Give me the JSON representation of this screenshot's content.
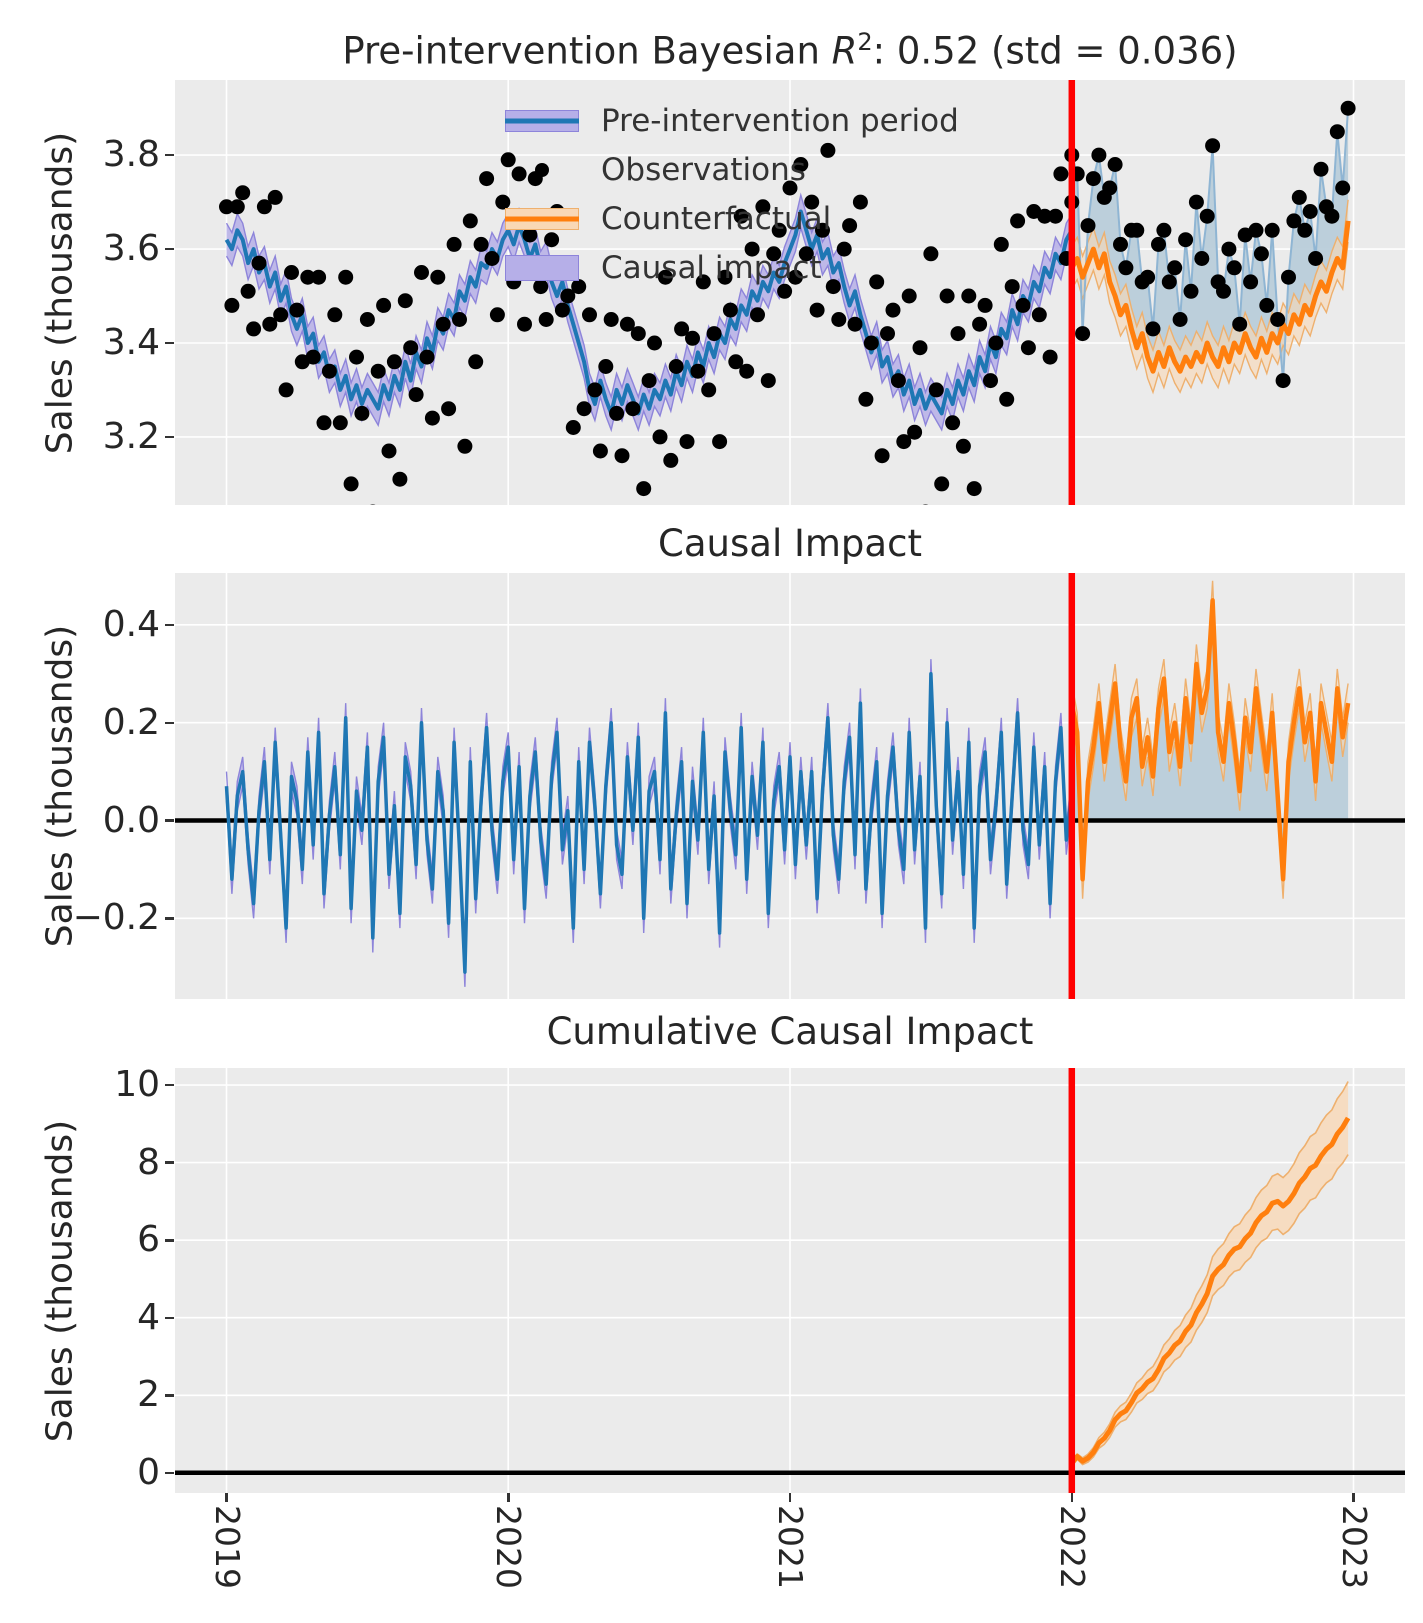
{
  "figure": {
    "background": "#ffffff",
    "panel_background": "#ebebeb",
    "grid_color": "#ffffff",
    "text_color": "#262626",
    "intervention_line_color": "#ff0000",
    "zero_line_color": "#000000"
  },
  "colors": {
    "pre_line": "#1f77b4",
    "pre_band": "#b6afe8",
    "pre_band_edge": "#8d84da",
    "counterfactual_line": "#ff7f0e",
    "counterfactual_band": "#f9d8b6",
    "counterfactual_band_edge": "#eeb06e",
    "causal_impact_fill": "#b9cdda",
    "observation_line": "#8fb5d3",
    "observation_dot": "#000000"
  },
  "xaxis": {
    "tick_labels": [
      "2019",
      "2020",
      "2021",
      "2022",
      "2023"
    ],
    "tick_weeks": [
      0,
      52,
      104,
      156,
      208
    ],
    "xlim_weeks": [
      -9.5,
      217.5
    ],
    "intervention_week": 156,
    "frequency": "weekly"
  },
  "chart_data": [
    {
      "type": "line",
      "title": "Pre-intervention Bayesian R²: 0.52 (std = 0.036)",
      "title_parts": {
        "prefix": "Pre-intervention Bayesian ",
        "stat_symbol": "R",
        "stat_exponent": "2",
        "suffix": ": 0.52 (std = 0.036)"
      },
      "ylabel": "Sales (thousands)",
      "ytick_labels": [
        "3.2",
        "3.4",
        "3.6",
        "3.8"
      ],
      "yticks": [
        3.2,
        3.4,
        3.6,
        3.8
      ],
      "ylim": [
        3.055,
        3.96
      ],
      "legend": [
        {
          "label": "Pre-intervention period",
          "kind": "line_band"
        },
        {
          "label": "Observations",
          "kind": "dot"
        },
        {
          "label": "Counterfactual",
          "kind": "line_band"
        },
        {
          "label": "Causal impact",
          "kind": "patch"
        }
      ],
      "series": {
        "pre_mean": [
          3.62,
          3.6,
          3.64,
          3.62,
          3.57,
          3.6,
          3.55,
          3.57,
          3.52,
          3.55,
          3.49,
          3.52,
          3.46,
          3.43,
          3.46,
          3.4,
          3.42,
          3.36,
          3.38,
          3.33,
          3.35,
          3.3,
          3.33,
          3.28,
          3.31,
          3.27,
          3.3,
          3.28,
          3.26,
          3.31,
          3.28,
          3.33,
          3.3,
          3.36,
          3.32,
          3.38,
          3.35,
          3.41,
          3.38,
          3.44,
          3.42,
          3.47,
          3.45,
          3.51,
          3.49,
          3.54,
          3.52,
          3.57,
          3.56,
          3.6,
          3.58,
          3.62,
          3.64,
          3.61,
          3.65,
          3.62,
          3.58,
          3.61,
          3.56,
          3.58,
          3.53,
          3.5,
          3.53,
          3.48,
          3.44,
          3.4,
          3.36,
          3.3,
          3.27,
          3.32,
          3.28,
          3.25,
          3.3,
          3.27,
          3.31,
          3.28,
          3.25,
          3.29,
          3.26,
          3.3,
          3.28,
          3.32,
          3.29,
          3.34,
          3.31,
          3.36,
          3.33,
          3.38,
          3.35,
          3.4,
          3.37,
          3.42,
          3.4,
          3.45,
          3.43,
          3.48,
          3.46,
          3.51,
          3.49,
          3.53,
          3.51,
          3.55,
          3.53,
          3.57,
          3.6,
          3.63,
          3.68,
          3.64,
          3.6,
          3.63,
          3.58,
          3.6,
          3.55,
          3.57,
          3.52,
          3.48,
          3.51,
          3.46,
          3.42,
          3.38,
          3.41,
          3.35,
          3.37,
          3.32,
          3.34,
          3.29,
          3.32,
          3.27,
          3.3,
          3.26,
          3.29,
          3.27,
          3.25,
          3.3,
          3.27,
          3.32,
          3.29,
          3.34,
          3.31,
          3.37,
          3.34,
          3.4,
          3.37,
          3.43,
          3.41,
          3.47,
          3.44,
          3.5,
          3.48,
          3.53,
          3.51,
          3.56,
          3.54,
          3.59,
          3.57,
          3.62,
          3.64
        ],
        "pre_band_halfwidth": 0.035,
        "counterfactual": [
          3.56,
          3.58,
          3.54,
          3.57,
          3.6,
          3.56,
          3.59,
          3.53,
          3.5,
          3.46,
          3.48,
          3.43,
          3.39,
          3.42,
          3.37,
          3.34,
          3.38,
          3.35,
          3.39,
          3.36,
          3.34,
          3.37,
          3.35,
          3.38,
          3.36,
          3.4,
          3.37,
          3.35,
          3.39,
          3.36,
          3.4,
          3.38,
          3.42,
          3.39,
          3.37,
          3.41,
          3.38,
          3.42,
          3.4,
          3.44,
          3.42,
          3.46,
          3.44,
          3.48,
          3.46,
          3.5,
          3.53,
          3.51,
          3.55,
          3.58,
          3.56,
          3.66
        ],
        "counterfactual_band_halfwidth": 0.045
      }
    },
    {
      "type": "line",
      "title": "Causal Impact",
      "ylabel": "Sales (thousands)",
      "ytick_labels": [
        "−0.2",
        "0.0",
        "0.2",
        "0.4"
      ],
      "yticks": [
        -0.2,
        0.0,
        0.2,
        0.4
      ],
      "ylim": [
        -0.365,
        0.506
      ],
      "series": {
        "impact_pre": [
          0.07,
          -0.12,
          0.05,
          0.1,
          -0.06,
          -0.17,
          0.02,
          0.12,
          -0.08,
          0.16,
          -0.03,
          -0.22,
          0.09,
          0.04,
          -0.1,
          0.14,
          -0.05,
          0.18,
          -0.15,
          0.01,
          0.11,
          -0.07,
          0.21,
          -0.18,
          0.06,
          -0.02,
          0.15,
          -0.24,
          0.08,
          0.17,
          -0.11,
          0.03,
          -0.19,
          0.13,
          0.07,
          -0.09,
          0.2,
          -0.04,
          -0.14,
          0.1,
          0.02,
          -0.21,
          0.16,
          -0.06,
          -0.31,
          0.12,
          -0.16,
          0.04,
          0.19,
          -0.02,
          -0.12,
          0.08,
          0.15,
          -0.08,
          0.11,
          -0.18,
          0.05,
          0.14,
          -0.04,
          -0.13,
          0.09,
          0.18,
          -0.06,
          0.02,
          -0.22,
          0.12,
          -0.1,
          0.16,
          0.03,
          -0.15,
          0.07,
          0.2,
          -0.05,
          -0.11,
          0.13,
          -0.02,
          0.17,
          -0.2,
          0.06,
          0.1,
          -0.08,
          0.22,
          -0.14,
          0.01,
          0.12,
          -0.17,
          0.08,
          -0.04,
          0.18,
          -0.1,
          0.05,
          -0.23,
          0.14,
          0.02,
          -0.07,
          0.19,
          -0.12,
          0.09,
          -0.03,
          0.16,
          -0.19,
          0.04,
          0.11,
          -0.06,
          0.13,
          -0.09,
          0.1,
          -0.05,
          0.1,
          -0.16,
          0.06,
          0.21,
          -0.03,
          -0.12,
          0.08,
          0.17,
          -0.07,
          0.24,
          -0.14,
          0.02,
          0.12,
          -0.19,
          0.05,
          0.15,
          -0.02,
          -0.1,
          0.18,
          -0.06,
          0.09,
          -0.22,
          0.3,
          0.03,
          -0.15,
          0.2,
          -0.04,
          0.1,
          -0.11,
          0.16,
          -0.22,
          0.07,
          0.14,
          -0.08,
          0.03,
          0.18,
          -0.13,
          0.05,
          0.22,
          -0.02,
          -0.09,
          0.15,
          -0.05,
          0.11,
          -0.17,
          0.08,
          0.19,
          -0.04,
          0.06
        ],
        "impact_pre_band_halfwidth": 0.03,
        "impact_post": [
          0.24,
          0.18,
          -0.12,
          0.08,
          0.15,
          0.24,
          0.12,
          0.2,
          0.28,
          0.15,
          0.08,
          0.21,
          0.25,
          0.11,
          0.17,
          0.09,
          0.23,
          0.29,
          0.14,
          0.2,
          0.11,
          0.25,
          0.16,
          0.32,
          0.22,
          0.27,
          0.45,
          0.18,
          0.12,
          0.24,
          0.16,
          0.06,
          0.21,
          0.14,
          0.27,
          0.18,
          0.1,
          0.22,
          0.05,
          -0.12,
          0.12,
          0.2,
          0.27,
          0.16,
          0.22,
          0.08,
          0.24,
          0.18,
          0.12,
          0.27,
          0.17,
          0.24
        ],
        "impact_post_band_halfwidth": 0.04
      }
    },
    {
      "type": "line",
      "title": "Cumulative Causal Impact",
      "ylabel": "Sales (thousands)",
      "ytick_labels": [
        "0",
        "2",
        "4",
        "6",
        "8",
        "10"
      ],
      "yticks": [
        0,
        2,
        4,
        6,
        8,
        10
      ],
      "ylim": [
        -0.52,
        10.44
      ],
      "series": {
        "cumulative_definition": "cumulative sum of impact_post (ends near 9.15)",
        "band_base_halfwidth": 0.05,
        "band_growth_per_week": 0.0175
      }
    }
  ]
}
